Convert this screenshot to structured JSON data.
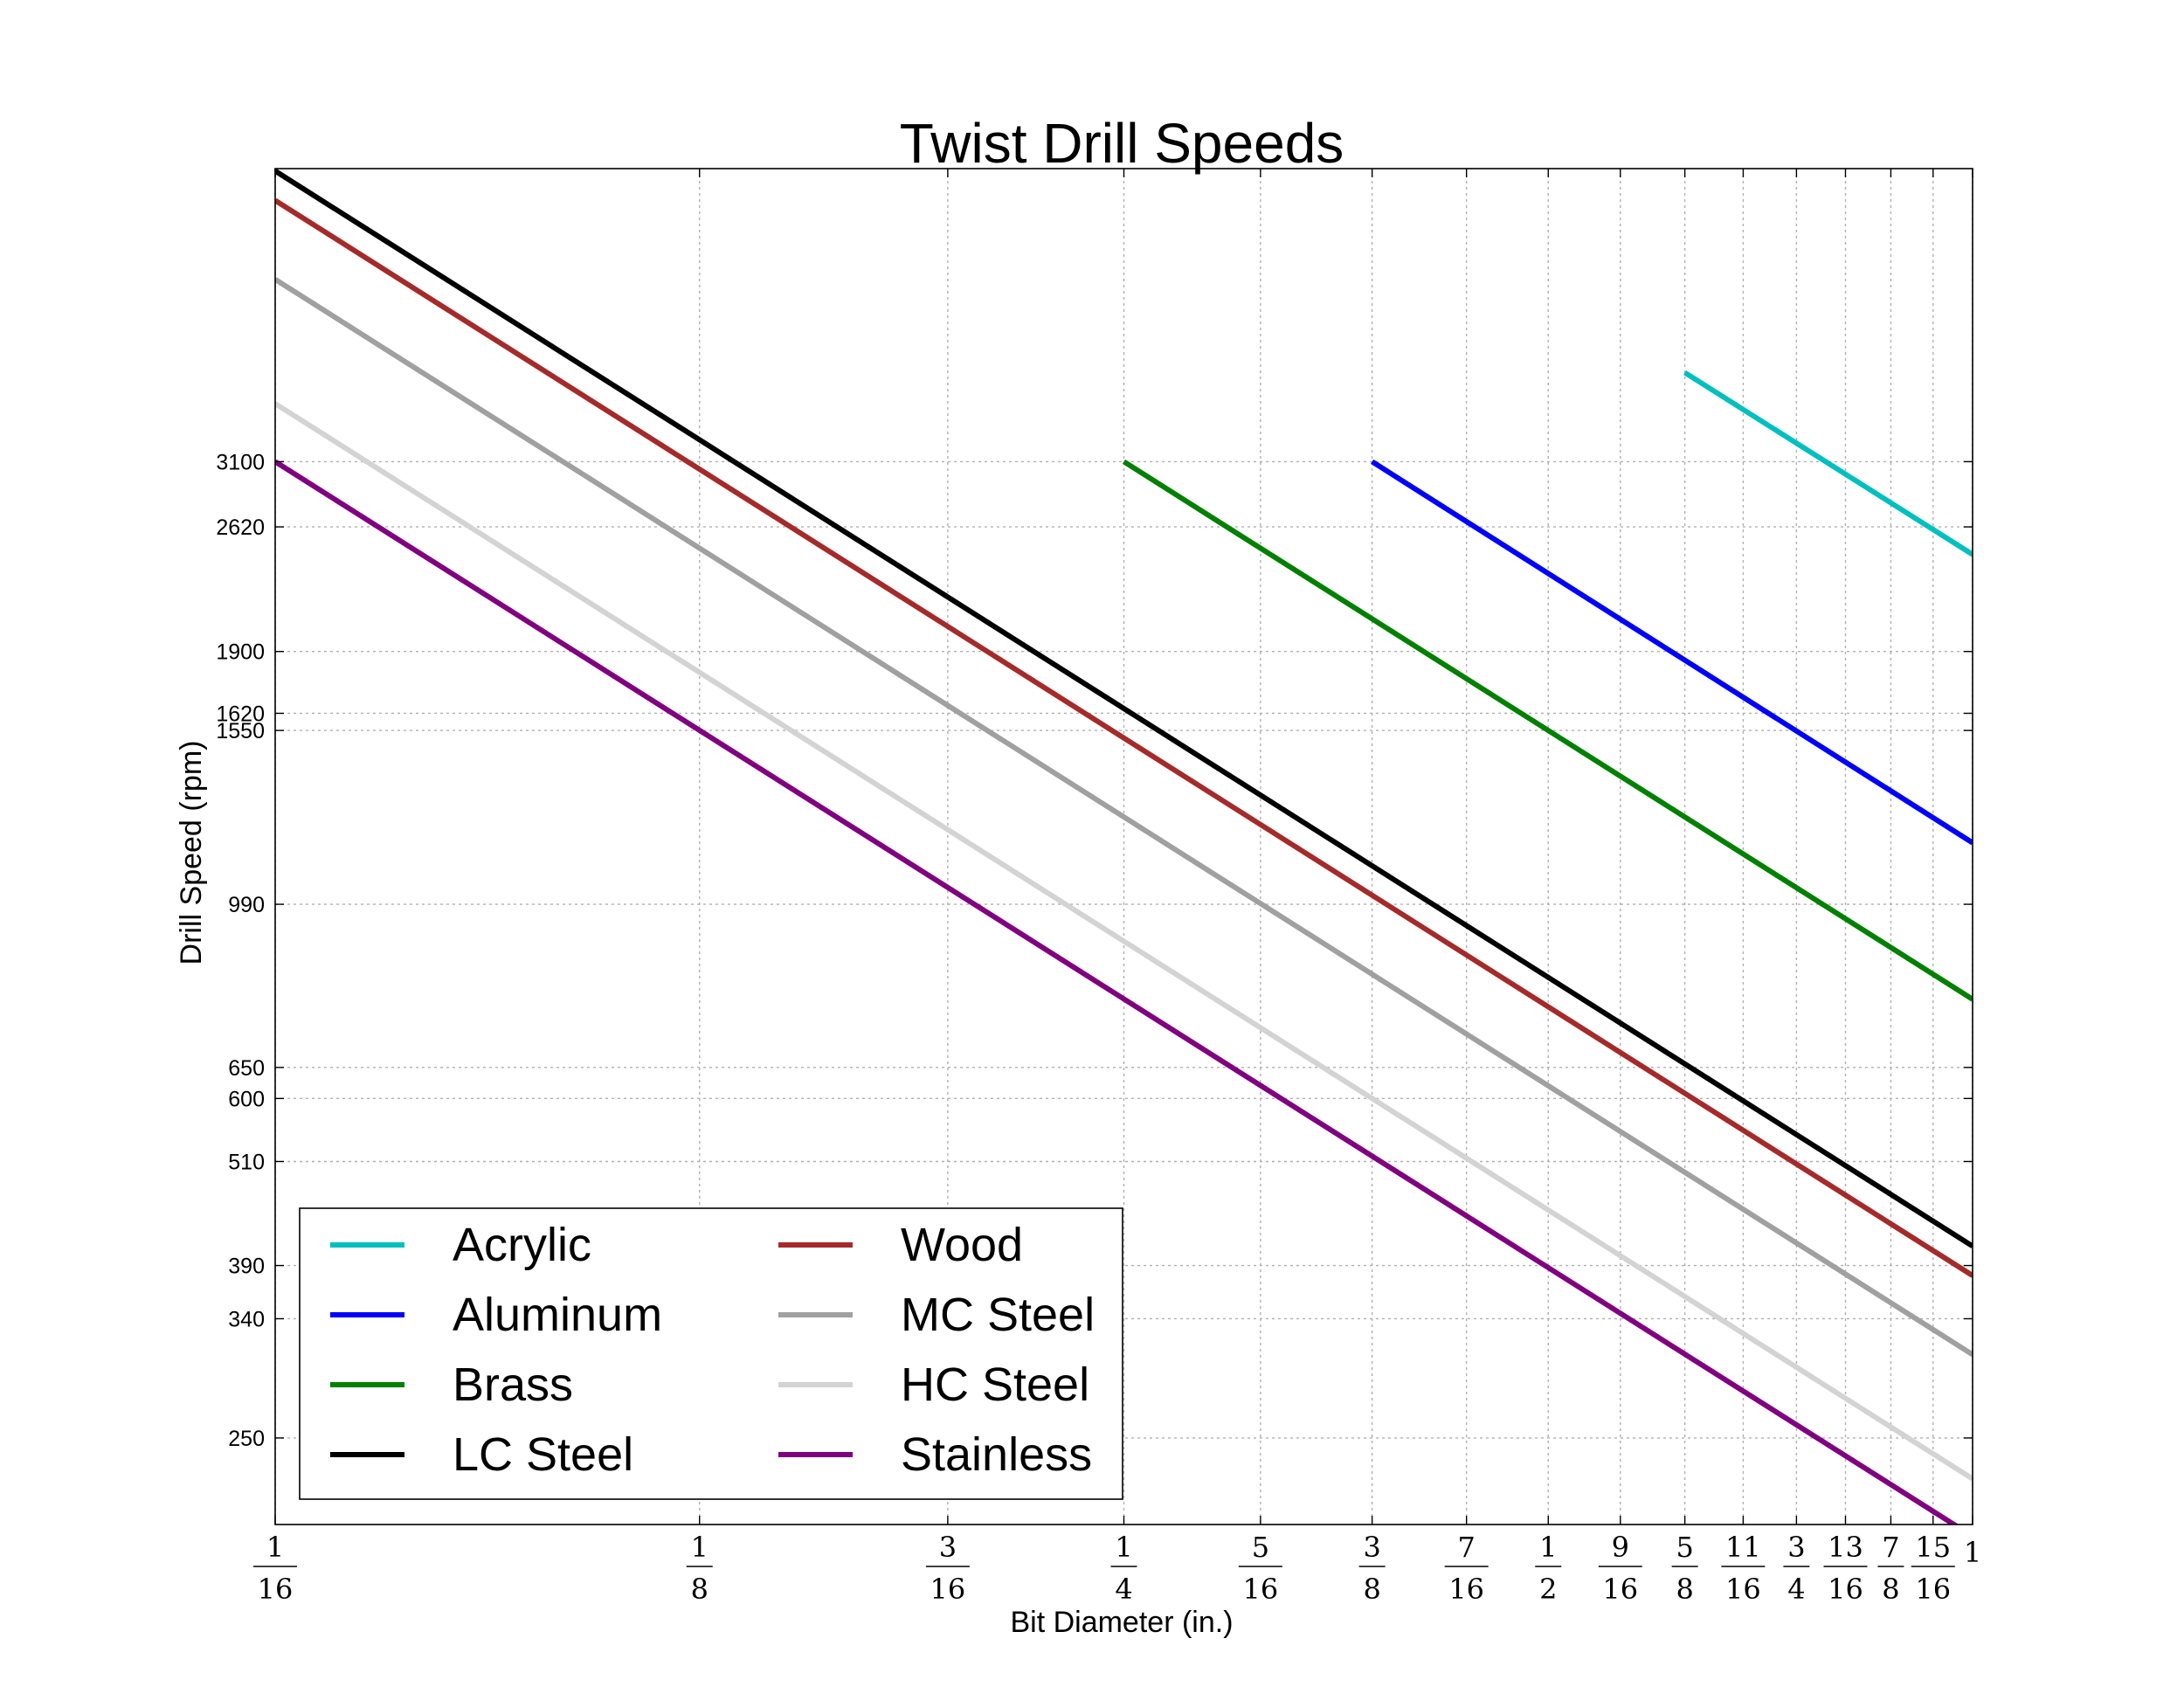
{
  "chart_data": {
    "type": "line",
    "title": "Twist Drill Speeds",
    "xlabel": "Bit Diameter (in.)",
    "ylabel": "Drill Speed (rpm)",
    "x_scale": "log",
    "y_scale": "log",
    "xlim": [
      0.0625,
      1.0
    ],
    "ylim": [
      200,
      6600
    ],
    "grid": true,
    "legend": {
      "position": "lower-left",
      "columns": 2
    },
    "x_ticks": [
      {
        "value": 0.0625,
        "num": "1",
        "den": "16"
      },
      {
        "value": 0.125,
        "num": "1",
        "den": "8"
      },
      {
        "value": 0.1875,
        "num": "3",
        "den": "16"
      },
      {
        "value": 0.25,
        "num": "1",
        "den": "4"
      },
      {
        "value": 0.3125,
        "num": "5",
        "den": "16"
      },
      {
        "value": 0.375,
        "num": "3",
        "den": "8"
      },
      {
        "value": 0.4375,
        "num": "7",
        "den": "16"
      },
      {
        "value": 0.5,
        "num": "1",
        "den": "2"
      },
      {
        "value": 0.5625,
        "num": "9",
        "den": "16"
      },
      {
        "value": 0.625,
        "num": "5",
        "den": "8"
      },
      {
        "value": 0.6875,
        "num": "11",
        "den": "16"
      },
      {
        "value": 0.75,
        "num": "3",
        "den": "4"
      },
      {
        "value": 0.8125,
        "num": "13",
        "den": "16"
      },
      {
        "value": 0.875,
        "num": "7",
        "den": "8"
      },
      {
        "value": 0.9375,
        "num": "15",
        "den": "16"
      },
      {
        "value": 1.0,
        "num": "1",
        "den": ""
      }
    ],
    "y_ticks": [
      {
        "value": 250,
        "label": "250"
      },
      {
        "value": 340,
        "label": "340"
      },
      {
        "value": 390,
        "label": "390"
      },
      {
        "value": 510,
        "label": "510"
      },
      {
        "value": 600,
        "label": "600"
      },
      {
        "value": 650,
        "label": "650"
      },
      {
        "value": 990,
        "label": "990"
      },
      {
        "value": 1550,
        "label": "1550"
      },
      {
        "value": 1620,
        "label": "1620"
      },
      {
        "value": 1900,
        "label": "1900"
      },
      {
        "value": 2620,
        "label": "2620"
      },
      {
        "value": 3100,
        "label": "3100"
      }
    ],
    "series": [
      {
        "name": "Acrylic",
        "color": "#00bfbf",
        "x": [
          0.625,
          1.0
        ],
        "y": [
          3900,
          2440
        ]
      },
      {
        "name": "Aluminum",
        "color": "#0000ff",
        "x": [
          0.375,
          1.0
        ],
        "y": [
          3100,
          1160
        ]
      },
      {
        "name": "Brass",
        "color": "#008000",
        "x": [
          0.25,
          1.0
        ],
        "y": [
          3100,
          775
        ]
      },
      {
        "name": "LC Steel",
        "color": "#000000",
        "x": [
          0.0625,
          1.0
        ],
        "y": [
          6560,
          410
        ]
      },
      {
        "name": "Wood",
        "color": "#a52a2a",
        "x": [
          0.0625,
          1.0
        ],
        "y": [
          6080,
          380
        ]
      },
      {
        "name": "MC Steel",
        "color": "#a0a0a0",
        "x": [
          0.0625,
          1.0
        ],
        "y": [
          4960,
          310
        ]
      },
      {
        "name": "HC Steel",
        "color": "#d3d3d3",
        "x": [
          0.0625,
          1.0
        ],
        "y": [
          3600,
          225
        ]
      },
      {
        "name": "Stainless",
        "color": "#800080",
        "x": [
          0.0625,
          1.0
        ],
        "y": [
          3100,
          194
        ]
      }
    ]
  }
}
